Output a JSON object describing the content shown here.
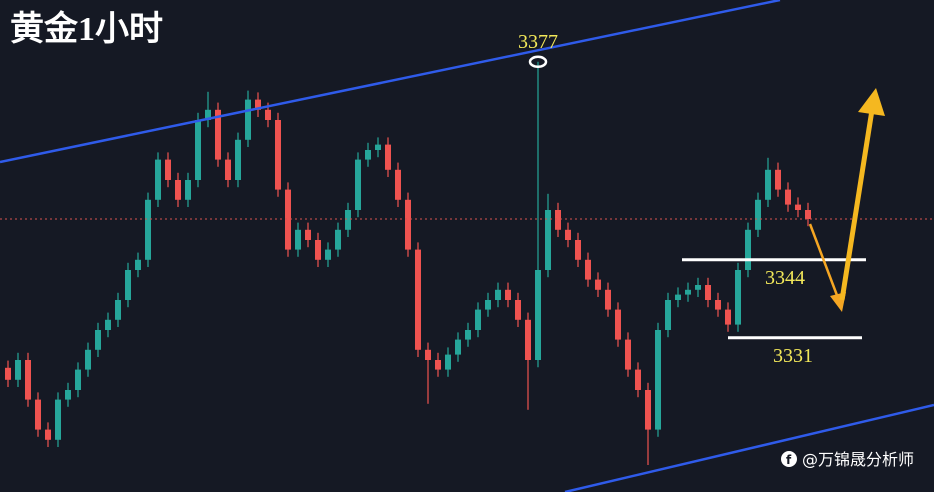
{
  "chart_data": {
    "type": "candlestick",
    "title": "黄金1小时",
    "open": [
      3326.0,
      3324.0,
      3327.3,
      3320.7,
      3315.7,
      3314.0,
      3320.7,
      3322.3,
      3325.7,
      3329.0,
      3332.3,
      3334.0,
      3337.3,
      3342.3,
      3344.0,
      3354.0,
      3360.7,
      3357.3,
      3354.0,
      3357.3,
      3367.3,
      3369.0,
      3360.7,
      3357.3,
      3364.0,
      3370.7,
      3369.0,
      3367.3,
      3355.7,
      3345.7,
      3349.0,
      3347.3,
      3344.0,
      3345.7,
      3349.0,
      3352.3,
      3360.7,
      3362.3,
      3363.2,
      3359.0,
      3354.0,
      3345.7,
      3329.0,
      3327.3,
      3325.7,
      3328.2,
      3330.7,
      3332.3,
      3335.7,
      3337.3,
      3339.0,
      3337.3,
      3334.0,
      3327.3,
      3342.3,
      3352.3,
      3349.0,
      3347.3,
      3344.0,
      3340.7,
      3339.0,
      3335.7,
      3330.7,
      3325.7,
      3322.3,
      3315.7,
      3332.3,
      3337.3,
      3338.2,
      3339.0,
      3339.8,
      3337.3,
      3335.7,
      3333.2,
      3342.3,
      3349.0,
      3354.0,
      3359.0,
      3355.7,
      3353.2,
      3352.3
    ],
    "high": [
      3327.2,
      3328.5,
      3328.5,
      3321.9,
      3316.9,
      3321.9,
      3323.5,
      3326.9,
      3330.2,
      3333.5,
      3335.2,
      3338.5,
      3343.5,
      3345.2,
      3355.2,
      3361.9,
      3361.9,
      3358.5,
      3358.5,
      3368.5,
      3372.0,
      3370.2,
      3361.9,
      3365.2,
      3372.2,
      3371.9,
      3370.2,
      3368.5,
      3356.9,
      3350.2,
      3350.2,
      3348.5,
      3346.9,
      3350.2,
      3353.5,
      3361.9,
      3363.5,
      3364.4,
      3364.4,
      3360.2,
      3355.2,
      3346.9,
      3330.2,
      3328.5,
      3329.4,
      3331.9,
      3333.5,
      3336.9,
      3338.5,
      3340.2,
      3340.2,
      3338.5,
      3335.2,
      3377.0,
      3355.0,
      3353.5,
      3350.2,
      3348.5,
      3345.2,
      3341.9,
      3340.2,
      3336.9,
      3331.9,
      3326.9,
      3323.5,
      3333.5,
      3338.5,
      3339.4,
      3340.2,
      3341.0,
      3341.0,
      3338.5,
      3336.9,
      3343.5,
      3350.2,
      3355.2,
      3361.0,
      3360.2,
      3356.9,
      3354.4,
      3353.5
    ],
    "low": [
      3322.8,
      3322.8,
      3319.5,
      3314.5,
      3312.8,
      3312.8,
      3319.5,
      3321.1,
      3324.5,
      3327.8,
      3331.1,
      3332.8,
      3336.1,
      3341.1,
      3342.8,
      3352.8,
      3356.1,
      3352.8,
      3352.8,
      3356.1,
      3366.1,
      3359.5,
      3356.1,
      3356.1,
      3362.8,
      3367.8,
      3366.1,
      3354.5,
      3344.5,
      3344.5,
      3346.1,
      3342.8,
      3342.8,
      3344.5,
      3347.8,
      3351.1,
      3359.5,
      3361.1,
      3357.8,
      3352.8,
      3344.5,
      3327.8,
      3320.0,
      3324.5,
      3324.5,
      3327.0,
      3329.5,
      3331.1,
      3334.5,
      3336.1,
      3336.1,
      3332.8,
      3319.0,
      3326.1,
      3341.1,
      3347.8,
      3346.1,
      3342.8,
      3339.5,
      3337.8,
      3334.5,
      3329.5,
      3324.5,
      3321.1,
      3309.8,
      3314.5,
      3331.1,
      3336.1,
      3337.0,
      3337.8,
      3336.1,
      3334.5,
      3332.0,
      3332.0,
      3341.1,
      3347.8,
      3352.8,
      3354.5,
      3352.0,
      3351.1,
      3349.6
    ],
    "close": [
      3324.0,
      3327.3,
      3320.7,
      3315.7,
      3314.0,
      3320.7,
      3322.3,
      3325.7,
      3329.0,
      3332.3,
      3334.0,
      3337.3,
      3342.3,
      3344.0,
      3354.0,
      3360.7,
      3357.3,
      3354.0,
      3357.3,
      3367.3,
      3369.0,
      3360.7,
      3357.3,
      3364.0,
      3370.7,
      3369.0,
      3367.3,
      3355.7,
      3345.7,
      3349.0,
      3347.3,
      3344.0,
      3345.7,
      3349.0,
      3352.3,
      3360.7,
      3362.3,
      3363.2,
      3359.0,
      3354.0,
      3345.7,
      3329.0,
      3327.3,
      3325.7,
      3328.2,
      3330.7,
      3332.3,
      3335.7,
      3337.3,
      3339.0,
      3337.3,
      3334.0,
      3327.3,
      3342.3,
      3352.3,
      3349.0,
      3347.3,
      3344.0,
      3340.7,
      3339.0,
      3335.7,
      3330.7,
      3325.7,
      3322.3,
      3315.7,
      3332.3,
      3337.3,
      3338.2,
      3339.0,
      3339.8,
      3337.3,
      3335.7,
      3333.2,
      3342.3,
      3349.0,
      3354.0,
      3359.0,
      3355.7,
      3353.2,
      3352.3,
      3350.8
    ],
    "up_color": "#26a69a",
    "down_color": "#ef5350",
    "ylim": [
      3305.3,
      3387.3
    ],
    "annotations": [
      3377
    ],
    "levels": [
      3344,
      3331
    ],
    "watermark": "@万锦晟分析师"
  }
}
